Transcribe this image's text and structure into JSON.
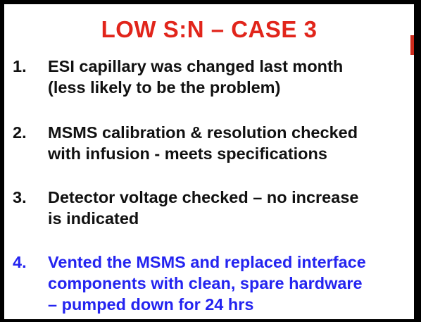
{
  "slide": {
    "title": "LOW S:N – CASE 3",
    "items": [
      {
        "number": "1.",
        "lines": [
          "ESI capillary was changed last month",
          "(less likely to be the problem)"
        ]
      },
      {
        "number": "2.",
        "lines": [
          "MSMS calibration & resolution checked",
          "with infusion - meets specifications"
        ]
      },
      {
        "number": "3.",
        "lines": [
          "Detector voltage checked – no increase",
          "is indicated"
        ]
      },
      {
        "number": "4.",
        "lines": [
          "Vented the MSMS and replaced interface",
          "components with clean, spare hardware",
          "– pumped down for 24 hrs"
        ]
      }
    ],
    "colors": {
      "title": "#e1251b",
      "body_text": "#111111",
      "highlight_item": "#2424f0",
      "background": "#ffffff",
      "frame": "#000000"
    }
  }
}
